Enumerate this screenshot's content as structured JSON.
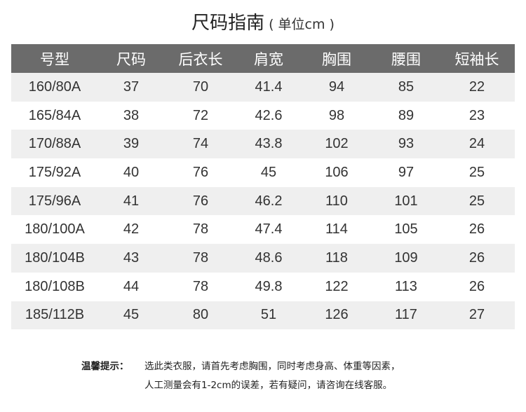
{
  "title": {
    "main": "尺码指南",
    "unit": "( 单位cm )"
  },
  "table": {
    "headers": [
      "号型",
      "尺码",
      "后衣长",
      "肩宽",
      "胸围",
      "腰围",
      "短袖长"
    ],
    "rows": [
      [
        "160/80A",
        "37",
        "70",
        "41.4",
        "94",
        "85",
        "22"
      ],
      [
        "165/84A",
        "38",
        "72",
        "42.6",
        "98",
        "89",
        "23"
      ],
      [
        "170/88A",
        "39",
        "74",
        "43.8",
        "102",
        "93",
        "24"
      ],
      [
        "175/92A",
        "40",
        "76",
        "45",
        "106",
        "97",
        "25"
      ],
      [
        "175/96A",
        "41",
        "76",
        "46.2",
        "110",
        "101",
        "25"
      ],
      [
        "180/100A",
        "42",
        "78",
        "47.4",
        "114",
        "105",
        "26"
      ],
      [
        "180/104B",
        "43",
        "78",
        "48.6",
        "118",
        "109",
        "26"
      ],
      [
        "180/108B",
        "44",
        "78",
        "49.8",
        "122",
        "113",
        "26"
      ],
      [
        "185/112B",
        "45",
        "80",
        "51",
        "126",
        "117",
        "27"
      ]
    ]
  },
  "notes": {
    "label": "温馨提示：",
    "line1": "选此类衣服，请首先考虑胸围，同时考虑身高、体重等因素，",
    "line2": "人工测量会有1-2cm的误差，若有疑问，请咨询在线客服。"
  },
  "colors": {
    "header_bg": "#6b6b6b",
    "stripe_bg": "#efefef"
  }
}
